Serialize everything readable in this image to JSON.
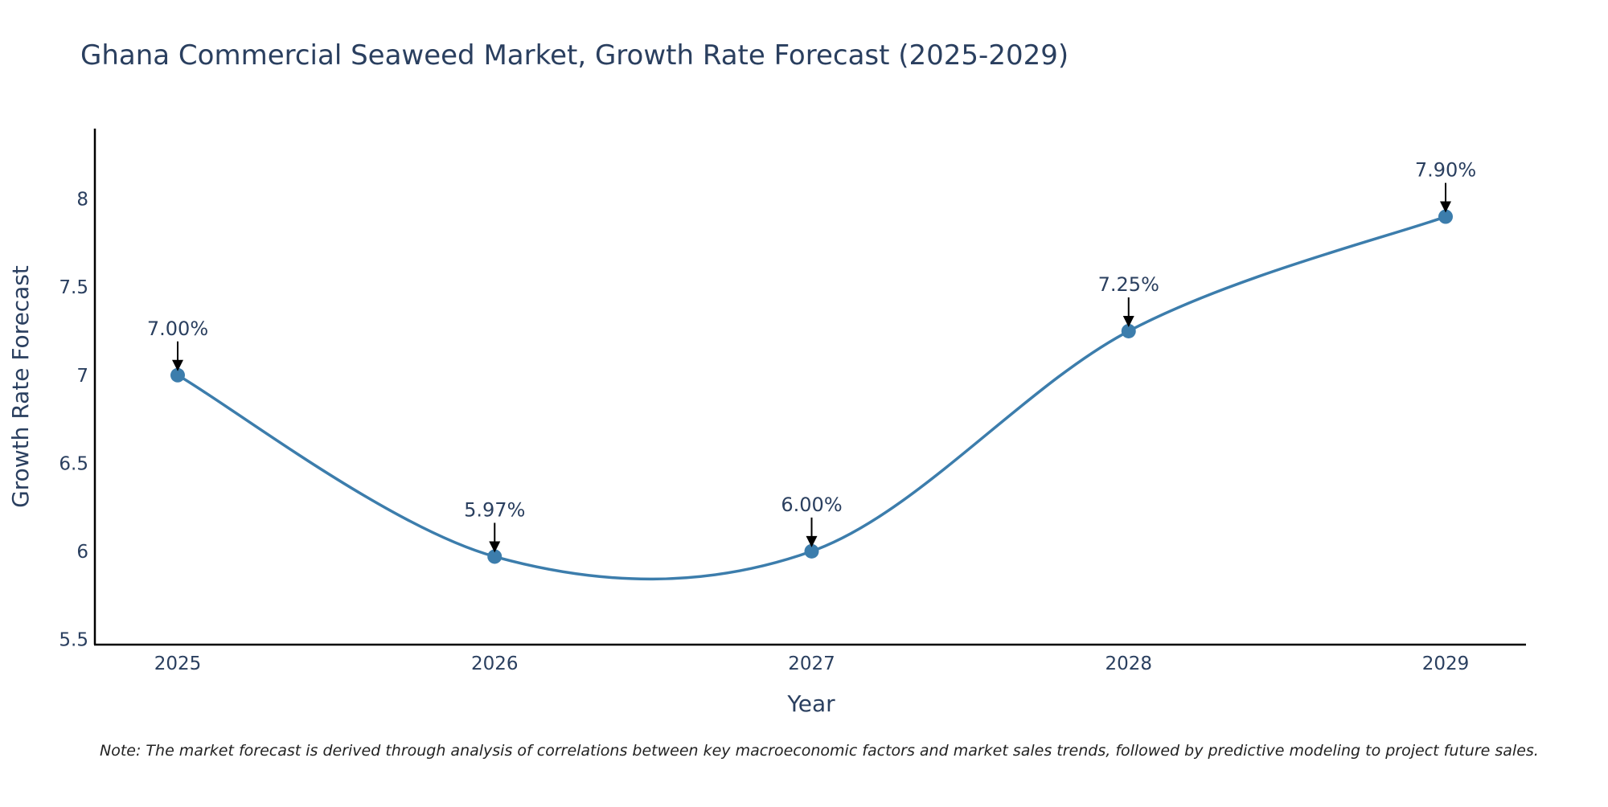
{
  "chart_data": {
    "type": "line",
    "title": "Ghana Commercial Seaweed Market, Growth Rate Forecast (2025-2029)",
    "xlabel": "Year",
    "ylabel": "Growth Rate Forecast",
    "categories": [
      "2025",
      "2026",
      "2027",
      "2028",
      "2029"
    ],
    "series": [
      {
        "name": "Growth Rate Forecast",
        "values": [
          7.0,
          5.97,
          6.0,
          7.25,
          7.9
        ],
        "color": "#3c7dac",
        "line_shape": "spline"
      }
    ],
    "data_labels": [
      "7.00%",
      "5.97%",
      "6.00%",
      "7.25%",
      "7.90%"
    ],
    "y_ticks": [
      5.5,
      6,
      6.5,
      7,
      7.5,
      8
    ],
    "y_tick_labels": [
      "5.5",
      "6",
      "6.5",
      "7",
      "7.5",
      "8"
    ],
    "ylim": [
      5.47,
      8.4
    ],
    "grid": false,
    "note": "Note: The market forecast is derived through analysis of correlations between key macroeconomic factors and market sales trends, followed by predictive modeling to project future sales."
  }
}
